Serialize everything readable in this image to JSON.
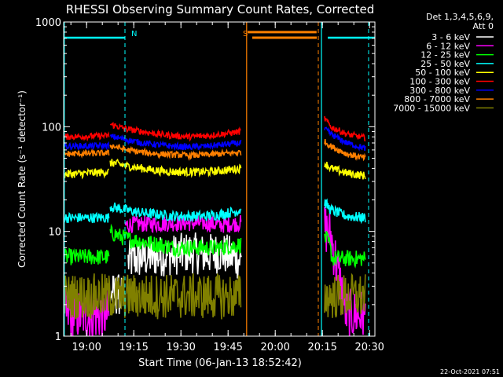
{
  "chart_data": {
    "type": "line",
    "title": "RHESSI Observing Summary Count Rates, Corrected",
    "xlabel": "Start Time (06-Jan-13 18:52:42)",
    "ylabel": "Corrected Count Rate (s⁻¹ detector⁻¹)",
    "yscale": "log",
    "ylim": [
      1,
      1000
    ],
    "xlim_minutes_after_start": [
      0,
      99
    ],
    "x_ticks": [
      {
        "label": "19:00",
        "minutes_after_start": 7.3
      },
      {
        "label": "19:15",
        "minutes_after_start": 22.3
      },
      {
        "label": "19:30",
        "minutes_after_start": 37.3
      },
      {
        "label": "19:45",
        "minutes_after_start": 52.3
      },
      {
        "label": "20:00",
        "minutes_after_start": 67.3
      },
      {
        "label": "20:15",
        "minutes_after_start": 82.3
      },
      {
        "label": "20:30",
        "minutes_after_start": 97.3
      }
    ],
    "y_ticks": [
      {
        "label": "1",
        "value": 1
      },
      {
        "label": "10",
        "value": 10
      },
      {
        "label": "100",
        "value": 100
      },
      {
        "label": "1000",
        "value": 1000
      }
    ],
    "legend_header": "Det 1,3,4,5,6,9,",
    "legend_header2": "Att 0",
    "legend_position": "right",
    "timestamp": "22-Oct-2021 07:51",
    "flags": [
      {
        "label": "N",
        "start": 0,
        "end": 19.5,
        "color": "#00ffff"
      },
      {
        "label": "S",
        "start": 60,
        "end": 80.5,
        "color": "#ff8000"
      },
      {
        "label": "",
        "start": 84,
        "end": 99,
        "color": "#00ffff"
      }
    ],
    "night_lines": [
      {
        "minutes_after_start": 19.5,
        "color": "#00ffff",
        "dashed": true
      },
      {
        "minutes_after_start": 97,
        "color": "#00ffff",
        "dashed": true
      },
      {
        "minutes_after_start": 81,
        "color": "#ff8000",
        "dashed": true
      }
    ],
    "boundary_lines": [
      {
        "minutes_after_start": 0.2,
        "color": "#00ffff"
      },
      {
        "minutes_after_start": 82,
        "color": "#00ffff"
      },
      {
        "minutes_after_start": 58.2,
        "color": "#ff8000"
      }
    ],
    "series": [
      {
        "name": "3 - 6 keV",
        "color": "#ffffff",
        "segments": [
          {
            "x": [
              20.5,
              25,
              30,
              35,
              40,
              45,
              50,
              56.5
            ],
            "y": [
              5.2,
              5.6,
              5.8,
              6.0,
              6.3,
              6.0,
              6.3,
              5.3
            ],
            "noise": 0.2
          },
          {
            "x": [
              14.8,
              18.5
            ],
            "y": [
              2.5,
              2.5
            ],
            "noise": 0.2
          }
        ]
      },
      {
        "name": "6 - 12 keV",
        "color": "#ff00ff",
        "segments": [
          {
            "x": [
              0,
              14.5
            ],
            "y": [
              1.6,
              1.6
            ],
            "noise": 0.25
          },
          {
            "x": [
              19.5,
              25,
              30,
              35,
              40,
              45,
              50,
              56.5
            ],
            "y": [
              11.5,
              11.8,
              11.8,
              12,
              12,
              12,
              11.5,
              12
            ],
            "noise": 0.08
          },
          {
            "x": [
              83,
              85,
              90,
              96
            ],
            "y": [
              11,
              9,
              1.6,
              1.6
            ],
            "noise": 0.25
          }
        ]
      },
      {
        "name": "12 - 25 keV",
        "color": "#00ff00",
        "segments": [
          {
            "x": [
              0,
              14.5
            ],
            "y": [
              5.7,
              5.7
            ],
            "noise": 0.08
          },
          {
            "x": [
              14.8,
              16,
              20,
              25,
              30,
              35,
              40,
              45,
              50,
              56.5
            ],
            "y": [
              9.5,
              9.5,
              8.5,
              8,
              7.5,
              7,
              7,
              7,
              7,
              7.5
            ],
            "noise": 0.08
          },
          {
            "x": [
              83,
              84.5,
              85.5,
              90,
              96
            ],
            "y": [
              9,
              7.5,
              5.5,
              5.5,
              5.5
            ],
            "noise": 0.08
          }
        ]
      },
      {
        "name": "25 - 50 keV",
        "color": "#00ffff",
        "segments": [
          {
            "x": [
              0,
              14.5
            ],
            "y": [
              13.5,
              13.5
            ],
            "noise": 0.05
          },
          {
            "x": [
              14.8,
              16,
              20,
              25,
              30,
              35,
              40,
              45,
              50,
              56.5
            ],
            "y": [
              17.5,
              17,
              16,
              15,
              14.5,
              14,
              14,
              14,
              14.5,
              16
            ],
            "noise": 0.05
          },
          {
            "x": [
              83,
              85,
              90,
              96
            ],
            "y": [
              19,
              16,
              14,
              13.5
            ],
            "noise": 0.05
          }
        ]
      },
      {
        "name": "50 - 100 keV",
        "color": "#ffff00",
        "segments": [
          {
            "x": [
              0,
              14.5
            ],
            "y": [
              35,
              37
            ],
            "noise": 0.04
          },
          {
            "x": [
              14.8,
              16,
              20,
              25,
              30,
              35,
              40,
              45,
              50,
              56.5
            ],
            "y": [
              45,
              45,
              42,
              40,
              38,
              37,
              37,
              37,
              38,
              40
            ],
            "noise": 0.04
          },
          {
            "x": [
              83,
              85,
              90,
              96
            ],
            "y": [
              45,
              40,
              36,
              34
            ],
            "noise": 0.04
          }
        ]
      },
      {
        "name": "100 - 300 keV",
        "color": "#ff0000",
        "segments": [
          {
            "x": [
              0,
              14.5
            ],
            "y": [
              80,
              82
            ],
            "noise": 0.03
          },
          {
            "x": [
              14.8,
              16,
              20,
              25,
              30,
              35,
              40,
              45,
              50,
              56.5
            ],
            "y": [
              105,
              103,
              95,
              90,
              85,
              82,
              80,
              82,
              85,
              90
            ],
            "noise": 0.03
          },
          {
            "x": [
              83,
              85,
              90,
              96
            ],
            "y": [
              120,
              100,
              85,
              78
            ],
            "noise": 0.03
          }
        ]
      },
      {
        "name": "300 - 800 keV",
        "color": "#0000ff",
        "segments": [
          {
            "x": [
              0,
              14.5
            ],
            "y": [
              65,
              66
            ],
            "noise": 0.03
          },
          {
            "x": [
              14.8,
              16,
              20,
              25,
              30,
              35,
              40,
              45,
              50,
              56.5
            ],
            "y": [
              80,
              80,
              75,
              70,
              67,
              65,
              64,
              65,
              67,
              70
            ],
            "noise": 0.03
          },
          {
            "x": [
              83,
              85,
              90,
              96
            ],
            "y": [
              95,
              85,
              70,
              62
            ],
            "noise": 0.03
          }
        ]
      },
      {
        "name": "800 - 7000 keV",
        "color": "#ff8000",
        "segments": [
          {
            "x": [
              0,
              14.5
            ],
            "y": [
              55,
              56
            ],
            "noise": 0.03
          },
          {
            "x": [
              14.8,
              16,
              20,
              25,
              30,
              35,
              40,
              45,
              50,
              56.5
            ],
            "y": [
              66,
              65,
              60,
              57,
              55,
              54,
              53,
              54,
              55,
              57
            ],
            "noise": 0.03
          },
          {
            "x": [
              83,
              85,
              90,
              96
            ],
            "y": [
              72,
              65,
              55,
              50
            ],
            "noise": 0.03
          },
          {
            "x": [
              58.5,
              80.5
            ],
            "y": [
              800,
              800
            ],
            "noise": 0
          }
        ]
      },
      {
        "name": "7000 - 15000 keV",
        "color": "#808000",
        "segments": [
          {
            "x": [
              0,
              56.5
            ],
            "y": [
              2.4,
              2.4
            ],
            "noise": 0.22
          },
          {
            "x": [
              83,
              96
            ],
            "y": [
              2.4,
              2.4
            ],
            "noise": 0.22
          }
        ]
      }
    ]
  }
}
